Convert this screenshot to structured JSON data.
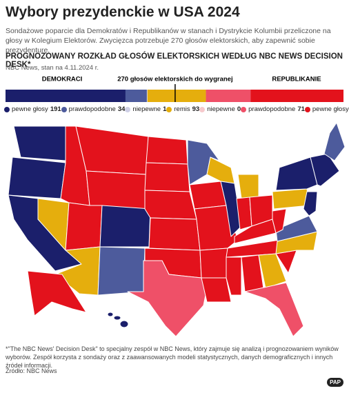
{
  "header": {
    "title": "Wybory prezydenckie w USA 2024",
    "subtitle": "Sondażowe poparcie dla Demokratów i Republikanów w stanach i Dystrykcie Kolumbii przeliczone na głosy w Kolegium Elektorów. Zwycięzca potrzebuje 270 głosów elektorskich, aby zapewnić sobie prezydenturę."
  },
  "chart_data": {
    "type": "stacked-bar",
    "title": "PROGNOZOWANY ROZKŁAD GŁOSÓW ELEKTORSKICH WEDŁUG NBC NEWS DECISION DESK*",
    "subtitle": "NBC News, stan na 4.11.2024 r.",
    "left_label": "DEMOKRACI",
    "right_label": "REPUBLIKANIE",
    "threshold_label": "270 głosów elektorskich do wygranej",
    "threshold": 270,
    "xlim": [
      0,
      538
    ],
    "series": [
      {
        "name": "pewne głosy",
        "color": "#1b1f6b",
        "values": [
          191
        ]
      },
      {
        "name": "prawdopodobne",
        "color": "#4d5b9c",
        "values": [
          34
        ]
      },
      {
        "name": "niepewne",
        "color": "#cfd0e6",
        "values": [
          1
        ]
      },
      {
        "name": "remis",
        "color": "#e5ae0d",
        "values": [
          93
        ]
      },
      {
        "name": "niepewne",
        "color": "#f6c9cc",
        "values": [
          0
        ]
      },
      {
        "name": "prawdopodobne",
        "color": "#ef5068",
        "values": [
          71
        ]
      },
      {
        "name": "pewne głosy",
        "color": "#e3121c",
        "values": [
          148
        ]
      }
    ]
  },
  "footnote": "*\"The NBC News' Decision Desk\" to specjalny zespół w NBC News, który zajmuje się analizą i prognozowaniem wyników wyborów. Zespół korzysta z sondaży oraz z zaawansowanych modeli statystycznych, danych demograficznych i innych źródeł informacji.",
  "source": "Źródło: NBC News",
  "logo": "PAP"
}
